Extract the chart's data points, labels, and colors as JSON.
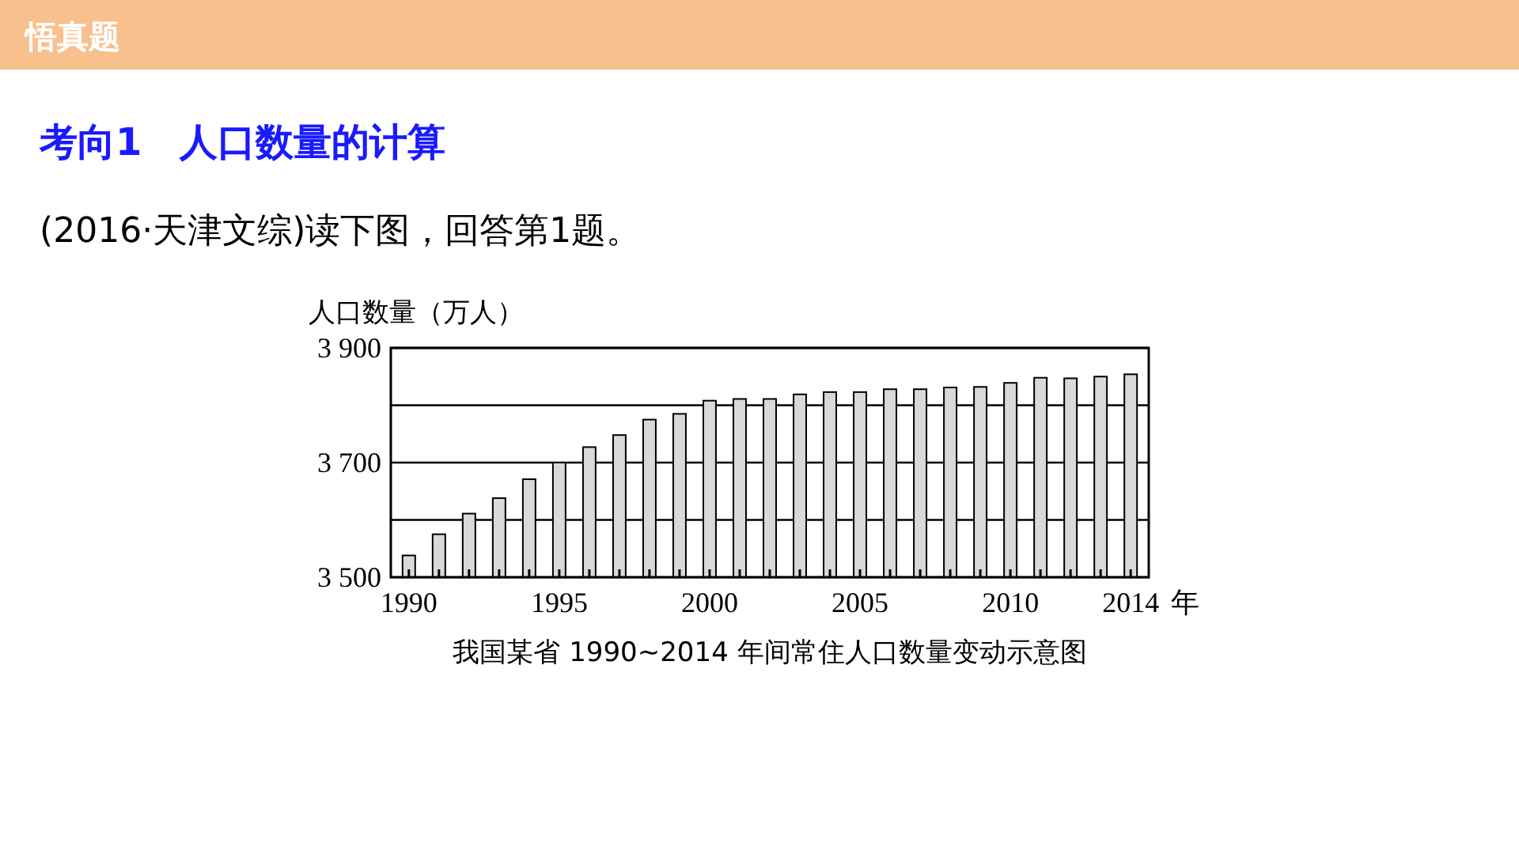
{
  "chart_data": {
    "type": "bar",
    "title": "考向1　人口数量的计算",
    "subtitle": "(2016·天津文综)读下图，回答第1题。",
    "ylabel": "人口数量（万人）",
    "xlabel": "年",
    "annotations": [
      "悟真题",
      "我国某省 1990~2014 年间常住人口数量变动示意图"
    ],
    "x": [
      1990,
      1991,
      1992,
      1993,
      1994,
      1995,
      1996,
      1997,
      1998,
      1999,
      2000,
      2001,
      2002,
      2003,
      2004,
      2005,
      2006,
      2007,
      2008,
      2009,
      2010,
      2011,
      2012,
      2013,
      2014
    ],
    "series": [
      {
        "color": "#d9d9d9",
        "values": [
          3538,
          3575,
          3611,
          3638,
          3671,
          3700,
          3727,
          3748,
          3775,
          3785,
          3808,
          3811,
          3811,
          3819,
          3823,
          3823,
          3828,
          3828,
          3831,
          3832,
          3839,
          3848,
          3847,
          3850,
          3854
        ]
      }
    ],
    "xlim": [
      1989.4,
      2014.6
    ],
    "ylim": [
      3500,
      3900
    ],
    "xticks": [
      1990,
      {
        "value": 1991,
        "label": null
      },
      {
        "value": 1992,
        "label": null
      },
      {
        "value": 1993,
        "label": null
      },
      {
        "value": 1994,
        "label": null
      },
      1995,
      {
        "value": 1996,
        "label": null
      },
      {
        "value": 1997,
        "label": null
      },
      {
        "value": 1998,
        "label": null
      },
      {
        "value": 1999,
        "label": null
      },
      2000,
      {
        "value": 2001,
        "label": null
      },
      {
        "value": 2002,
        "label": null
      },
      {
        "value": 2003,
        "label": null
      },
      {
        "value": 2004,
        "label": null
      },
      2005,
      {
        "value": 2006,
        "label": null
      },
      {
        "value": 2007,
        "label": null
      },
      {
        "value": 2008,
        "label": null
      },
      {
        "value": 2009,
        "label": null
      },
      2010,
      {
        "value": 2011,
        "label": null
      },
      {
        "value": 2012,
        "label": null
      },
      {
        "value": 2013,
        "label": null
      },
      2014
    ],
    "yticks": [
      {
        "value": 3500,
        "label": "3 500"
      },
      {
        "value": 3600,
        "label": null
      },
      {
        "value": 3700,
        "label": "3 700"
      },
      {
        "value": 3800,
        "label": null
      },
      {
        "value": 3900,
        "label": "3 900"
      }
    ],
    "grid": "y"
  }
}
